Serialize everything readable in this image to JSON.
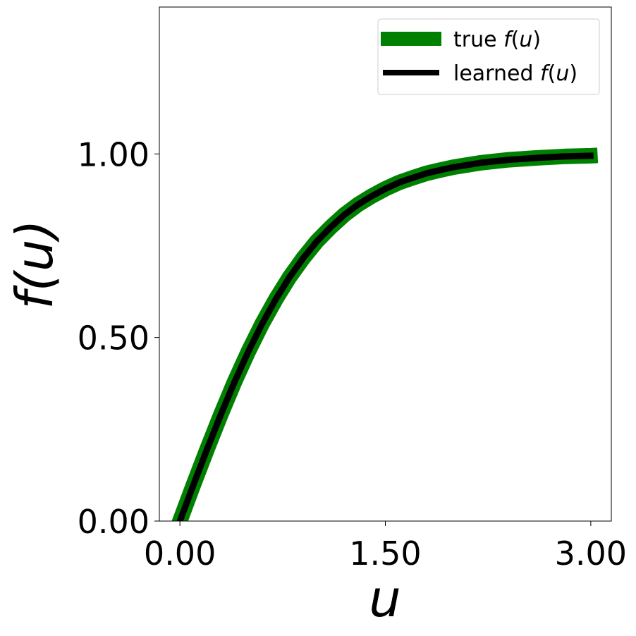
{
  "chart_data": {
    "type": "line",
    "xlabel": "u",
    "ylabel": "f(u)",
    "xlim": [
      -0.15,
      3.15
    ],
    "ylim": [
      0.0,
      1.4
    ],
    "x_ticks": [
      0.0,
      1.5,
      3.0
    ],
    "x_tick_labels": [
      "0.00",
      "1.50",
      "3.00"
    ],
    "y_ticks": [
      0.0,
      0.5,
      1.0
    ],
    "y_tick_labels": [
      "0.00",
      "0.50",
      "1.00"
    ],
    "grid": false,
    "legend_placement": "top-right",
    "series": [
      {
        "name": "true f(u)",
        "legend_prefix": "true ",
        "legend_func": "f",
        "legend_arg_open": "(",
        "legend_arg": "u",
        "legend_arg_close": ")",
        "color": "#008000",
        "x": [
          -0.05,
          0.0,
          0.1,
          0.2,
          0.3,
          0.4,
          0.5,
          0.6,
          0.7,
          0.8,
          0.9,
          1.0,
          1.1,
          1.2,
          1.3,
          1.4,
          1.5,
          1.6,
          1.7,
          1.8,
          1.9,
          2.0,
          2.2,
          2.4,
          2.6,
          2.8,
          3.0,
          3.05
        ],
        "y": [
          -0.05,
          0.0,
          0.1,
          0.197,
          0.291,
          0.38,
          0.462,
          0.537,
          0.604,
          0.664,
          0.716,
          0.762,
          0.8,
          0.834,
          0.862,
          0.885,
          0.905,
          0.922,
          0.935,
          0.947,
          0.956,
          0.964,
          0.976,
          0.984,
          0.989,
          0.993,
          0.995,
          0.996
        ]
      },
      {
        "name": "learned f(u)",
        "legend_prefix": "learned ",
        "legend_func": "f",
        "legend_arg_open": "(",
        "legend_arg": "u",
        "legend_arg_close": ")",
        "color": "#000000",
        "x": [
          -0.01,
          0.0,
          0.1,
          0.2,
          0.3,
          0.4,
          0.5,
          0.6,
          0.7,
          0.8,
          0.9,
          1.0,
          1.1,
          1.2,
          1.3,
          1.4,
          1.5,
          1.6,
          1.7,
          1.8,
          1.9,
          2.0,
          2.2,
          2.4,
          2.6,
          2.8,
          3.0,
          3.02
        ],
        "y": [
          -0.01,
          0.0,
          0.1,
          0.197,
          0.291,
          0.38,
          0.462,
          0.537,
          0.604,
          0.664,
          0.716,
          0.762,
          0.8,
          0.834,
          0.862,
          0.885,
          0.905,
          0.922,
          0.935,
          0.947,
          0.956,
          0.964,
          0.976,
          0.984,
          0.989,
          0.993,
          0.995,
          0.995
        ]
      }
    ]
  }
}
